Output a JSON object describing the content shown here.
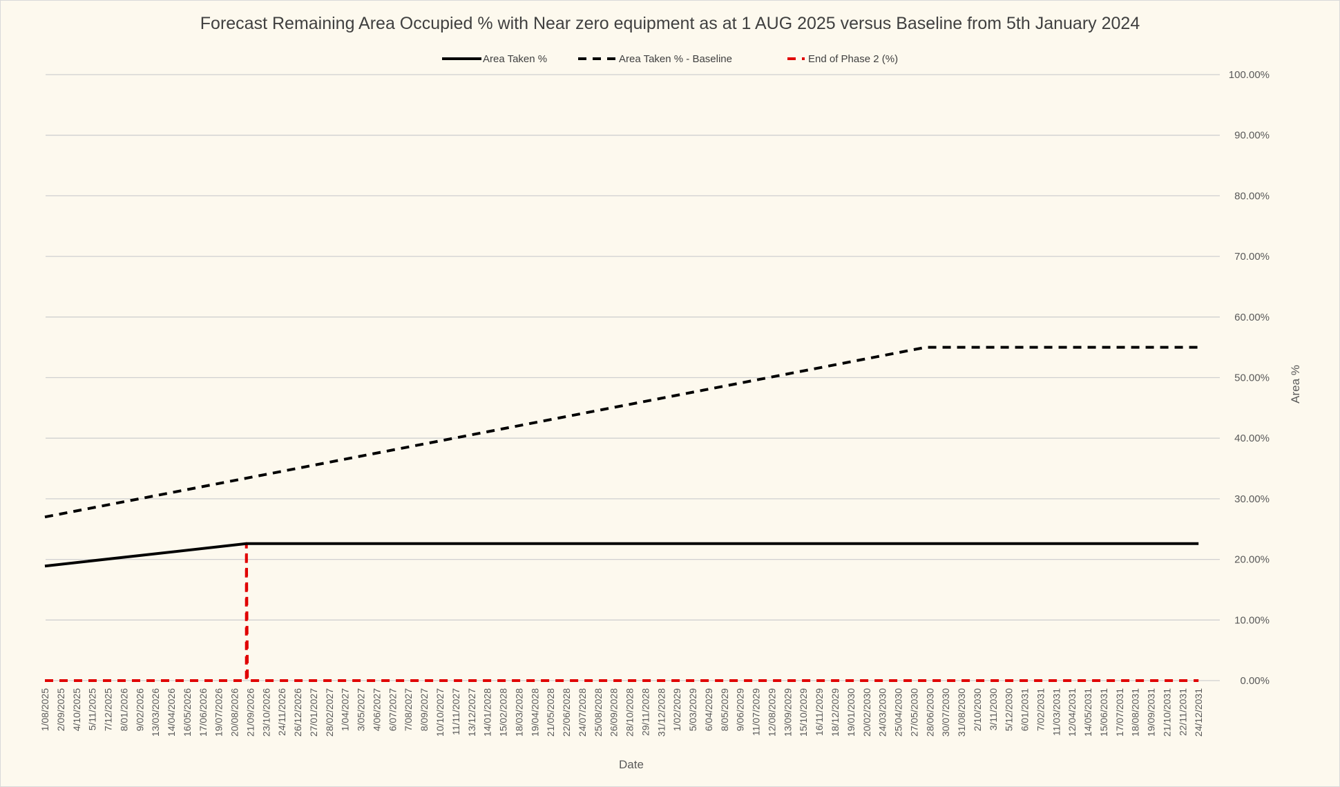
{
  "chart_data": {
    "type": "line",
    "title": "Forecast Remaining Area Occupied % with Near zero equipment as at 1 AUG 2025 versus Baseline from 5th January 2024",
    "xlabel": "Date",
    "ylabel": "Area %",
    "ylim": [
      0,
      100
    ],
    "y_axis_position": "right",
    "y_tick_labels": [
      "0.00%",
      "10.00%",
      "20.00%",
      "30.00%",
      "40.00%",
      "50.00%",
      "60.00%",
      "70.00%",
      "80.00%",
      "90.00%",
      "100.00%"
    ],
    "grid": true,
    "legend_position": "top",
    "x_tick_labels": [
      "1/08/2025",
      "2/09/2025",
      "4/10/2025",
      "5/11/2025",
      "7/12/2025",
      "8/01/2026",
      "9/02/2026",
      "13/03/2026",
      "14/04/2026",
      "16/05/2026",
      "17/06/2026",
      "19/07/2026",
      "20/08/2026",
      "21/09/2026",
      "23/10/2026",
      "24/11/2026",
      "26/12/2026",
      "27/01/2027",
      "28/02/2027",
      "1/04/2027",
      "3/05/2027",
      "4/06/2027",
      "6/07/2027",
      "7/08/2027",
      "8/09/2027",
      "10/10/2027",
      "11/11/2027",
      "13/12/2027",
      "14/01/2028",
      "15/02/2028",
      "18/03/2028",
      "19/04/2028",
      "21/05/2028",
      "22/06/2028",
      "24/07/2028",
      "25/08/2028",
      "26/09/2028",
      "28/10/2028",
      "29/11/2028",
      "31/12/2028",
      "1/02/2029",
      "5/03/2029",
      "6/04/2029",
      "8/05/2029",
      "9/06/2029",
      "11/07/2029",
      "12/08/2029",
      "13/09/2029",
      "15/10/2029",
      "16/11/2029",
      "18/12/2029",
      "19/01/2030",
      "20/02/2030",
      "24/03/2030",
      "25/04/2030",
      "27/05/2030",
      "28/06/2030",
      "30/07/2030",
      "31/08/2030",
      "2/10/2030",
      "3/11/2030",
      "5/12/2030",
      "6/01/2031",
      "7/02/2031",
      "11/03/2031",
      "12/04/2031",
      "14/05/2031",
      "15/06/2031",
      "17/07/2031",
      "18/08/2031",
      "19/09/2031",
      "21/10/2031",
      "22/11/2031",
      "24/12/2031"
    ],
    "x_range": [
      "1/08/2025",
      "24/12/2031"
    ],
    "series": [
      {
        "name": "Area Taken %",
        "color": "#000000",
        "style": "solid",
        "points": [
          {
            "x": "1/08/2025",
            "y": 18.9
          },
          {
            "x": "13/09/2026",
            "y": 22.6
          },
          {
            "x": "24/12/2031",
            "y": 22.6
          }
        ]
      },
      {
        "name": "Area Taken % - Baseline",
        "color": "#000000",
        "style": "dashed",
        "points": [
          {
            "x": "1/08/2025",
            "y": 27.0
          },
          {
            "x": "20/06/2030",
            "y": 55.0
          },
          {
            "x": "24/12/2031",
            "y": 55.0
          }
        ]
      },
      {
        "name": "End of Phase 2 (%)",
        "color": "#e00000",
        "style": "dashed",
        "points": [
          {
            "x": "1/08/2025",
            "y": 0
          },
          {
            "x": "13/09/2026",
            "y": 0
          },
          {
            "x": "13/09/2026",
            "y": 22.6
          },
          {
            "x": "15/09/2026",
            "y": 0
          },
          {
            "x": "24/12/2031",
            "y": 0
          }
        ]
      }
    ]
  }
}
